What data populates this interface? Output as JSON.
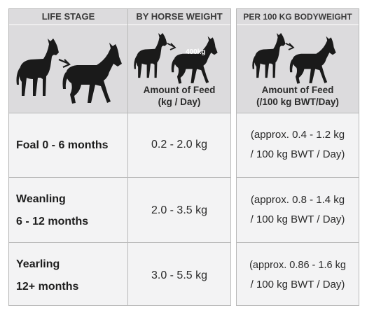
{
  "headers": {
    "life_stage": "LIFE STAGE",
    "by_weight": "BY HORSE WEIGHT",
    "per_100kg": "PER 100 KG BODYWEIGHT"
  },
  "image_row": {
    "weight_badge": "400kg",
    "by_weight_caption_1": "Amount of Feed",
    "by_weight_caption_2": "(kg / Day)",
    "per_100kg_caption_1": "Amount of Feed",
    "per_100kg_caption_2": "(/100 kg BWT/Day)",
    "icons": [
      "standing-horse-icon",
      "arrow-icon",
      "walking-horse-icon"
    ]
  },
  "rows": [
    {
      "stage_line1": "Foal 0 - 6 months",
      "stage_line2": "",
      "by_weight": "0.2 - 2.0 kg",
      "per_100kg_line1": "(approx. 0.4 - 1.2 kg",
      "per_100kg_line2": "/ 100 kg BWT / Day)"
    },
    {
      "stage_line1": "Weanling",
      "stage_line2": "6 - 12 months",
      "by_weight": "2.0 - 3.5 kg",
      "per_100kg_line1": "(approx. 0.8 - 1.4 kg",
      "per_100kg_line2": "/ 100 kg BWT / Day)"
    },
    {
      "stage_line1": "Yearling",
      "stage_line2": "12+ months",
      "by_weight": "3.0 - 5.5 kg",
      "per_100kg_line1": "(approx. 0.86 - 1.6 kg",
      "per_100kg_line2": "/ 100 kg BWT / Day)"
    }
  ],
  "colors": {
    "header_bg": "#dcdbdd",
    "cell_bg": "#f3f3f4",
    "border": "#b9b9b9",
    "horse": "#1a1a1a"
  }
}
